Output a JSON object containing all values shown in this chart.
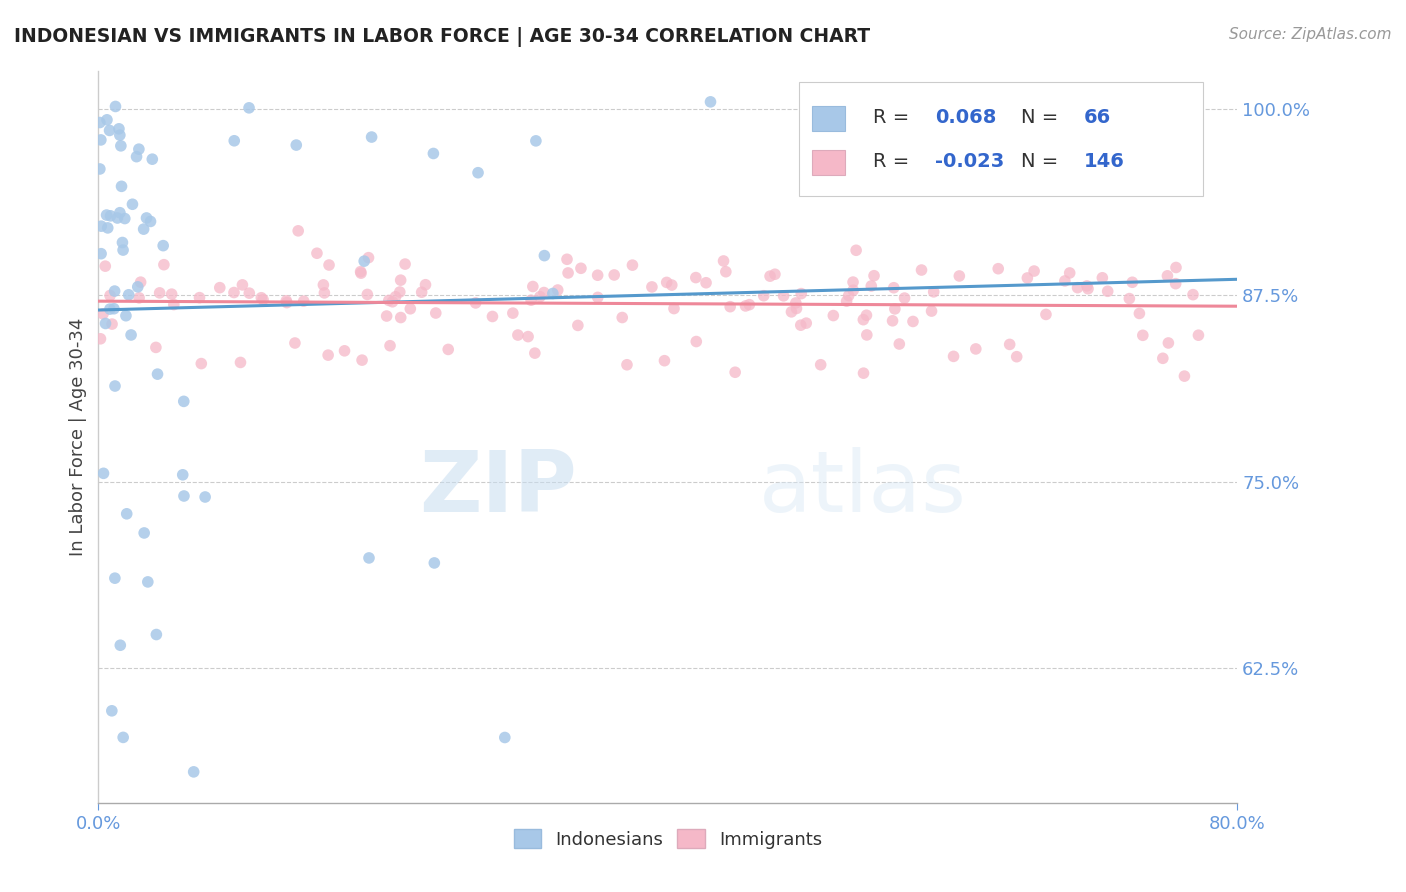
{
  "title": "INDONESIAN VS IMMIGRANTS IN LABOR FORCE | AGE 30-34 CORRELATION CHART",
  "source": "Source: ZipAtlas.com",
  "ylabel": "In Labor Force | Age 30-34",
  "xmin": 0.0,
  "xmax": 0.8,
  "ymin": 0.535,
  "ymax": 1.025,
  "R_indonesian": 0.068,
  "N_indonesian": 66,
  "R_immigrant": -0.023,
  "N_immigrant": 146,
  "color_indonesian": "#a8c8e8",
  "color_immigrant": "#f5b8c8",
  "trendline_color_ind": "#5599cc",
  "trendline_color_imm": "#ee8899",
  "watermark_zip": "ZIP",
  "watermark_atlas": "atlas",
  "ytick_vals": [
    0.625,
    0.75,
    0.875,
    1.0
  ],
  "ytick_labels": [
    "62.5%",
    "75.0%",
    "87.5%",
    "100.0%"
  ],
  "grid_color": "#cccccc",
  "bg_color": "#ffffff",
  "title_color": "#222222",
  "ylabel_color": "#444444",
  "tick_color": "#6699dd",
  "source_color": "#999999"
}
